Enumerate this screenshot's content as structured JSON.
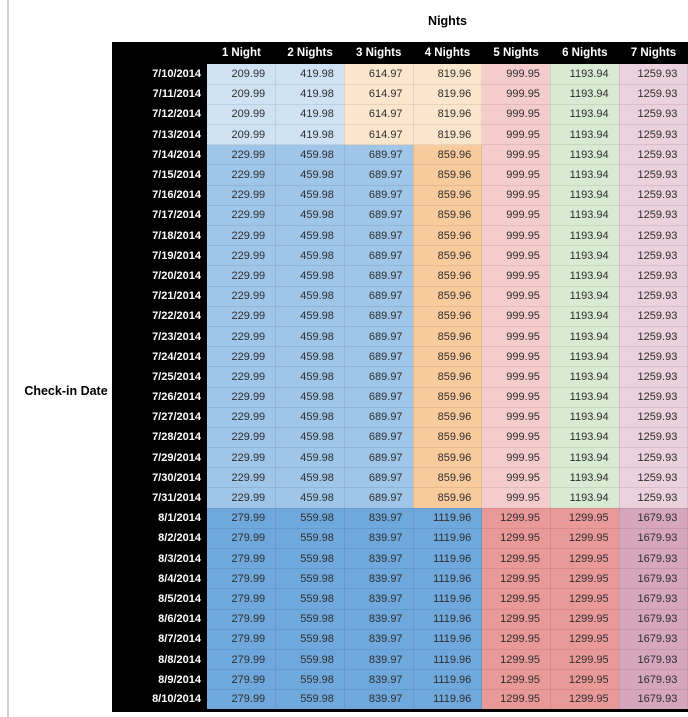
{
  "title": "Nights",
  "row_axis_label": "Check-in Date",
  "table": {
    "columns": [
      "1 Night",
      "2 Nights",
      "3 Nights",
      "4 Nights",
      "5 Nights",
      "6 Nights",
      "7 Nights"
    ],
    "palette": {
      "blue_pale": "#cfe2f3",
      "blue_light": "#9fc5e8",
      "blue_medium": "#6fa8dc",
      "orange_pale": "#fce5cd",
      "orange_light": "#f9cb9c",
      "red_pale": "#f4cccc",
      "red_light": "#ea9999",
      "green_pale": "#d9ead3",
      "magenta_pale": "#ead1dc",
      "magenta_light": "#d5a6bd",
      "header_bg": "#000000",
      "header_text": "#ffffff",
      "value_text": "#2e2e2e"
    },
    "tiers": [
      {
        "values": [
          "209.99",
          "419.98",
          "614.97",
          "819.96",
          "999.95",
          "1193.94",
          "1259.93"
        ],
        "cell_colors": [
          "blue_pale",
          "blue_pale",
          "orange_pale",
          "orange_pale",
          "red_pale",
          "green_pale",
          "magenta_pale"
        ]
      },
      {
        "values": [
          "229.99",
          "459.98",
          "689.97",
          "859.96",
          "999.95",
          "1193.94",
          "1259.93"
        ],
        "cell_colors": [
          "blue_light",
          "blue_light",
          "blue_light",
          "orange_light",
          "red_pale",
          "green_pale",
          "magenta_pale"
        ]
      },
      {
        "values": [
          "279.99",
          "559.98",
          "839.97",
          "1119.96",
          "1299.95",
          "1299.95",
          "1679.93"
        ],
        "cell_colors": [
          "blue_medium",
          "blue_medium",
          "blue_medium",
          "blue_medium",
          "red_light",
          "red_light",
          "magenta_light"
        ]
      }
    ],
    "rows": [
      {
        "date": "7/10/2014",
        "tier": 0
      },
      {
        "date": "7/11/2014",
        "tier": 0
      },
      {
        "date": "7/12/2014",
        "tier": 0
      },
      {
        "date": "7/13/2014",
        "tier": 0
      },
      {
        "date": "7/14/2014",
        "tier": 1
      },
      {
        "date": "7/15/2014",
        "tier": 1
      },
      {
        "date": "7/16/2014",
        "tier": 1
      },
      {
        "date": "7/17/2014",
        "tier": 1
      },
      {
        "date": "7/18/2014",
        "tier": 1
      },
      {
        "date": "7/19/2014",
        "tier": 1
      },
      {
        "date": "7/20/2014",
        "tier": 1
      },
      {
        "date": "7/21/2014",
        "tier": 1
      },
      {
        "date": "7/22/2014",
        "tier": 1
      },
      {
        "date": "7/23/2014",
        "tier": 1
      },
      {
        "date": "7/24/2014",
        "tier": 1
      },
      {
        "date": "7/25/2014",
        "tier": 1
      },
      {
        "date": "7/26/2014",
        "tier": 1
      },
      {
        "date": "7/27/2014",
        "tier": 1
      },
      {
        "date": "7/28/2014",
        "tier": 1
      },
      {
        "date": "7/29/2014",
        "tier": 1
      },
      {
        "date": "7/30/2014",
        "tier": 1
      },
      {
        "date": "7/31/2014",
        "tier": 1
      },
      {
        "date": "8/1/2014",
        "tier": 2
      },
      {
        "date": "8/2/2014",
        "tier": 2
      },
      {
        "date": "8/3/2014",
        "tier": 2
      },
      {
        "date": "8/4/2014",
        "tier": 2
      },
      {
        "date": "8/5/2014",
        "tier": 2
      },
      {
        "date": "8/6/2014",
        "tier": 2
      },
      {
        "date": "8/7/2014",
        "tier": 2
      },
      {
        "date": "8/8/2014",
        "tier": 2
      },
      {
        "date": "8/9/2014",
        "tier": 2
      },
      {
        "date": "8/10/2014",
        "tier": 2
      }
    ]
  }
}
